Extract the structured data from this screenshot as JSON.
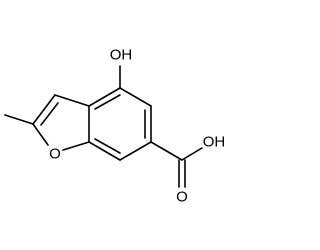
{
  "atoms": [
    {
      "label": "OH"
    },
    {
      "label": "O"
    },
    {
      "label": "OH"
    },
    {
      "label": "O"
    }
  ]
}
